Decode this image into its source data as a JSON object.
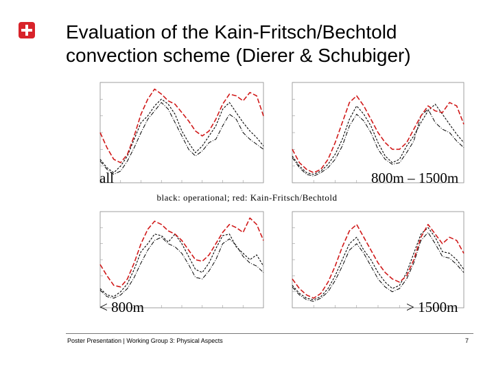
{
  "slide": {
    "title_line1": "Evaluation of the Kain-Fritsch/Bechtold",
    "title_line2": "convection scheme (Dierer & Schubiger)",
    "legend_note": "black: operational; red: Kain-Fritsch/Bechtold",
    "footer": "Poster Presentation | Working Group 3: Physical Aspects",
    "page_number": "7"
  },
  "colors": {
    "operational": "#000000",
    "kain_fritsch": "#d01818",
    "logo": "#d8232a"
  },
  "chart_data": [
    {
      "type": "line",
      "label": "all",
      "xlim": [
        0,
        24
      ],
      "ylim": [
        0,
        0.06
      ],
      "series": [
        {
          "name": "operational",
          "values": [
            0.014,
            0.009,
            0.006,
            0.01,
            0.016,
            0.026,
            0.036,
            0.04,
            0.046,
            0.05,
            0.047,
            0.041,
            0.031,
            0.024,
            0.018,
            0.022,
            0.028,
            0.034,
            0.044,
            0.048,
            0.042,
            0.036,
            0.031,
            0.027,
            0.022
          ]
        },
        {
          "name": "operational-2",
          "values": [
            0.013,
            0.008,
            0.005,
            0.007,
            0.013,
            0.021,
            0.03,
            0.038,
            0.043,
            0.048,
            0.044,
            0.036,
            0.028,
            0.02,
            0.016,
            0.019,
            0.024,
            0.026,
            0.034,
            0.041,
            0.038,
            0.03,
            0.026,
            0.023,
            0.02
          ]
        },
        {
          "name": "kain-fritsch",
          "values": [
            0.03,
            0.021,
            0.014,
            0.012,
            0.017,
            0.028,
            0.041,
            0.05,
            0.056,
            0.053,
            0.049,
            0.047,
            0.042,
            0.037,
            0.031,
            0.028,
            0.031,
            0.038,
            0.047,
            0.053,
            0.052,
            0.049,
            0.054,
            0.052,
            0.04
          ]
        }
      ]
    },
    {
      "type": "line",
      "label": "800m – 1500m",
      "xlim": [
        0,
        24
      ],
      "ylim": [
        0,
        0.06
      ],
      "series": [
        {
          "name": "operational",
          "values": [
            0.016,
            0.01,
            0.006,
            0.005,
            0.007,
            0.011,
            0.017,
            0.026,
            0.038,
            0.046,
            0.041,
            0.034,
            0.024,
            0.016,
            0.012,
            0.014,
            0.022,
            0.028,
            0.036,
            0.043,
            0.047,
            0.041,
            0.035,
            0.029,
            0.024
          ]
        },
        {
          "name": "operational-2",
          "values": [
            0.015,
            0.009,
            0.005,
            0.004,
            0.006,
            0.009,
            0.014,
            0.022,
            0.034,
            0.041,
            0.037,
            0.03,
            0.02,
            0.014,
            0.011,
            0.012,
            0.018,
            0.025,
            0.04,
            0.044,
            0.036,
            0.032,
            0.03,
            0.025,
            0.021
          ]
        },
        {
          "name": "kain-fritsch",
          "values": [
            0.02,
            0.012,
            0.008,
            0.006,
            0.008,
            0.014,
            0.024,
            0.036,
            0.048,
            0.052,
            0.046,
            0.038,
            0.03,
            0.024,
            0.02,
            0.02,
            0.024,
            0.032,
            0.04,
            0.046,
            0.043,
            0.042,
            0.048,
            0.046,
            0.035
          ]
        }
      ]
    },
    {
      "type": "line",
      "label": "< 800m",
      "xlim": [
        0,
        24
      ],
      "ylim": [
        0,
        0.06
      ],
      "series": [
        {
          "name": "operational",
          "values": [
            0.012,
            0.008,
            0.007,
            0.01,
            0.015,
            0.024,
            0.035,
            0.04,
            0.046,
            0.045,
            0.041,
            0.046,
            0.04,
            0.032,
            0.024,
            0.022,
            0.028,
            0.037,
            0.045,
            0.046,
            0.038,
            0.034,
            0.03,
            0.033,
            0.026
          ]
        },
        {
          "name": "operational-2",
          "values": [
            0.011,
            0.007,
            0.006,
            0.008,
            0.012,
            0.019,
            0.028,
            0.036,
            0.042,
            0.044,
            0.04,
            0.038,
            0.034,
            0.027,
            0.019,
            0.018,
            0.023,
            0.03,
            0.04,
            0.043,
            0.039,
            0.032,
            0.028,
            0.026,
            0.022
          ]
        },
        {
          "name": "kain-fritsch",
          "values": [
            0.027,
            0.02,
            0.014,
            0.013,
            0.018,
            0.028,
            0.04,
            0.049,
            0.054,
            0.052,
            0.048,
            0.046,
            0.042,
            0.036,
            0.03,
            0.029,
            0.033,
            0.04,
            0.047,
            0.052,
            0.05,
            0.047,
            0.056,
            0.052,
            0.042
          ]
        }
      ]
    },
    {
      "type": "line",
      "label": "> 1500m",
      "xlim": [
        0,
        24
      ],
      "ylim": [
        0,
        0.06
      ],
      "series": [
        {
          "name": "operational",
          "values": [
            0.014,
            0.009,
            0.006,
            0.005,
            0.007,
            0.012,
            0.02,
            0.03,
            0.04,
            0.044,
            0.036,
            0.03,
            0.022,
            0.016,
            0.012,
            0.014,
            0.022,
            0.034,
            0.046,
            0.05,
            0.044,
            0.035,
            0.034,
            0.03,
            0.024
          ]
        },
        {
          "name": "operational-2",
          "values": [
            0.013,
            0.008,
            0.005,
            0.004,
            0.006,
            0.01,
            0.017,
            0.026,
            0.036,
            0.04,
            0.034,
            0.026,
            0.018,
            0.013,
            0.01,
            0.012,
            0.018,
            0.028,
            0.042,
            0.047,
            0.04,
            0.032,
            0.031,
            0.027,
            0.022
          ]
        },
        {
          "name": "kain-fritsch",
          "values": [
            0.018,
            0.012,
            0.008,
            0.006,
            0.009,
            0.016,
            0.026,
            0.038,
            0.048,
            0.052,
            0.044,
            0.036,
            0.028,
            0.022,
            0.018,
            0.016,
            0.02,
            0.03,
            0.044,
            0.052,
            0.046,
            0.04,
            0.044,
            0.042,
            0.034
          ]
        }
      ]
    }
  ]
}
